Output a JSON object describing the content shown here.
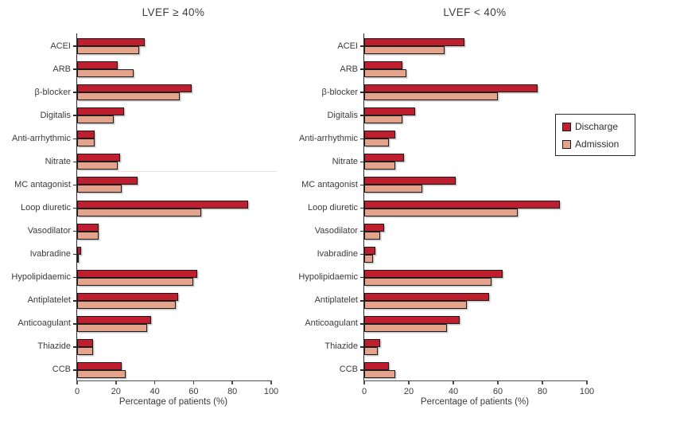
{
  "figure": {
    "legend": {
      "items": [
        {
          "label": "Discharge",
          "series": "discharge"
        },
        {
          "label": "Admission",
          "series": "admission"
        }
      ],
      "position": "right"
    },
    "colors": {
      "discharge": "#be1e2d",
      "admission": "#e5a38c",
      "bar_border": "#1c1c1c",
      "axis": "#3c3c3c",
      "text": "#3a3a3a"
    }
  },
  "chart_data": [
    {
      "type": "bar",
      "orientation": "horizontal",
      "title": "LVEF ≥ 40%",
      "xlabel": "Percentage of patients (%)",
      "ylabel": "",
      "xlim": [
        0,
        100
      ],
      "x_ticks": [
        0,
        20,
        40,
        60,
        80,
        100
      ],
      "grid": false,
      "categories": [
        "ACEI",
        "ARB",
        "β-blocker",
        "Digitalis",
        "Anti-arrhythmic",
        "Nitrate",
        "MC antagonist",
        "Loop diuretic",
        "Vasodilator",
        "Ivabradine",
        "Hypolipidaemic",
        "Antiplatelet",
        "Anticoagulant",
        "Thiazide",
        "CCB"
      ],
      "series": [
        {
          "name": "Discharge",
          "values": [
            35,
            21,
            59,
            24,
            9,
            22,
            31,
            88,
            11,
            2,
            62,
            52,
            38,
            8,
            23
          ]
        },
        {
          "name": "Admission",
          "values": [
            32,
            29,
            53,
            19,
            9,
            21,
            23,
            64,
            11,
            1,
            60,
            51,
            36,
            8,
            25
          ]
        }
      ]
    },
    {
      "type": "bar",
      "orientation": "horizontal",
      "title": "LVEF < 40%",
      "xlabel": "Percentage of patients (%)",
      "ylabel": "",
      "xlim": [
        0,
        100
      ],
      "x_ticks": [
        0,
        20,
        40,
        60,
        80,
        100
      ],
      "grid": false,
      "categories": [
        "ACEI",
        "ARB",
        "β-blocker",
        "Digitalis",
        "Anti-arrhythmic",
        "Nitrate",
        "MC antagonist",
        "Loop diuretic",
        "Vasodilator",
        "Ivabradine",
        "Hypolipidaemic",
        "Antiplatelet",
        "Anticoagulant",
        "Thiazide",
        "CCB"
      ],
      "series": [
        {
          "name": "Discharge",
          "values": [
            45,
            17,
            78,
            23,
            14,
            18,
            41,
            88,
            9,
            5,
            62,
            56,
            43,
            7,
            11
          ]
        },
        {
          "name": "Admission",
          "values": [
            36,
            19,
            60,
            17,
            11,
            14,
            26,
            69,
            7,
            4,
            57,
            46,
            37,
            6,
            14
          ]
        }
      ]
    }
  ]
}
